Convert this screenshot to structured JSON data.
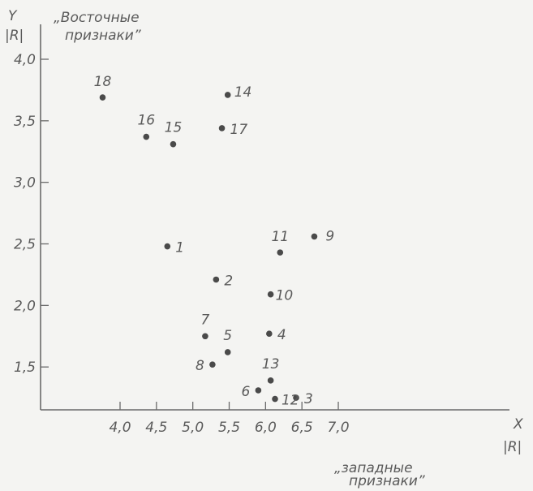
{
  "chart_data": {
    "type": "scatter",
    "title": "",
    "x_axis": {
      "label": "X",
      "unit": "|R|",
      "range": [
        3.3,
        7.2
      ],
      "ticks": [
        "4,0",
        "4,5",
        "5,0",
        "5,5",
        "6,0",
        "6,5",
        "7,0"
      ],
      "tick_values": [
        4.0,
        4.5,
        5.0,
        5.5,
        6.0,
        6.5,
        7.0
      ]
    },
    "y_axis": {
      "label": "Y",
      "unit": "|R|",
      "range": [
        0.9,
        4.3
      ],
      "ticks": [
        "4,0",
        "3,5",
        "3,0",
        "2,5",
        "2,0",
        "1,5"
      ],
      "tick_values": [
        4.0,
        3.5,
        3.0,
        2.5,
        2.0,
        1.5
      ]
    },
    "annotations": {
      "eastern": [
        "„Восточные",
        "признаки”"
      ],
      "western": [
        "„западные",
        "признаки”"
      ]
    },
    "points": [
      {
        "label": "1",
        "x": 4.65,
        "y": 2.48
      },
      {
        "label": "2",
        "x": 5.32,
        "y": 2.21
      },
      {
        "label": "3",
        "x": 6.42,
        "y": 1.25
      },
      {
        "label": "4",
        "x": 6.05,
        "y": 1.77
      },
      {
        "label": "5",
        "x": 5.48,
        "y": 1.62
      },
      {
        "label": "6",
        "x": 5.9,
        "y": 1.31
      },
      {
        "label": "7",
        "x": 5.17,
        "y": 1.75
      },
      {
        "label": "8",
        "x": 5.27,
        "y": 1.52
      },
      {
        "label": "9",
        "x": 6.67,
        "y": 2.56
      },
      {
        "label": "10",
        "x": 6.07,
        "y": 2.09
      },
      {
        "label": "11",
        "x": 6.2,
        "y": 2.43
      },
      {
        "label": "12",
        "x": 6.13,
        "y": 1.24
      },
      {
        "label": "13",
        "x": 6.07,
        "y": 1.39
      },
      {
        "label": "14",
        "x": 5.48,
        "y": 3.71
      },
      {
        "label": "15",
        "x": 4.73,
        "y": 3.31
      },
      {
        "label": "16",
        "x": 4.36,
        "y": 3.37
      },
      {
        "label": "17",
        "x": 5.4,
        "y": 3.44
      },
      {
        "label": "18",
        "x": 3.76,
        "y": 3.69
      }
    ]
  }
}
